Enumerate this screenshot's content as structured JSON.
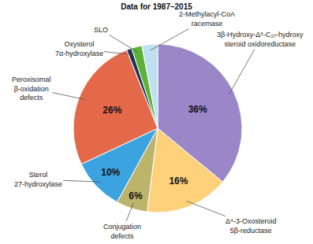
{
  "chart_data": {
    "type": "pie",
    "title": "Data for 1987–2015",
    "categories": [
      "3β-Hydroxy-Δ⁵-C₂₇-hydroxy steroid oxidoreductase",
      "Δ⁴-3-Oxosteroid 5β-reductase",
      "Conjugation defects",
      "Sterol 27-hydroxylase",
      "Peroxisomal β-oxidation defects",
      "Oxysterol 7α-hydroxylase",
      "SLO",
      "2-Methylacyl-CoA racemase"
    ],
    "values": [
      36,
      16,
      6,
      10,
      26,
      1,
      2,
      3
    ],
    "value_labels": [
      "36%",
      "16%",
      "6%",
      "10%",
      "26%",
      null,
      null,
      null
    ],
    "data_labels": true,
    "colors": [
      "#9b87c8",
      "#fcd17a",
      "#bdb46b",
      "#3ba3e0",
      "#e4694a",
      "#1f3556",
      "#5cb338",
      "#bfe0f0"
    ]
  }
}
